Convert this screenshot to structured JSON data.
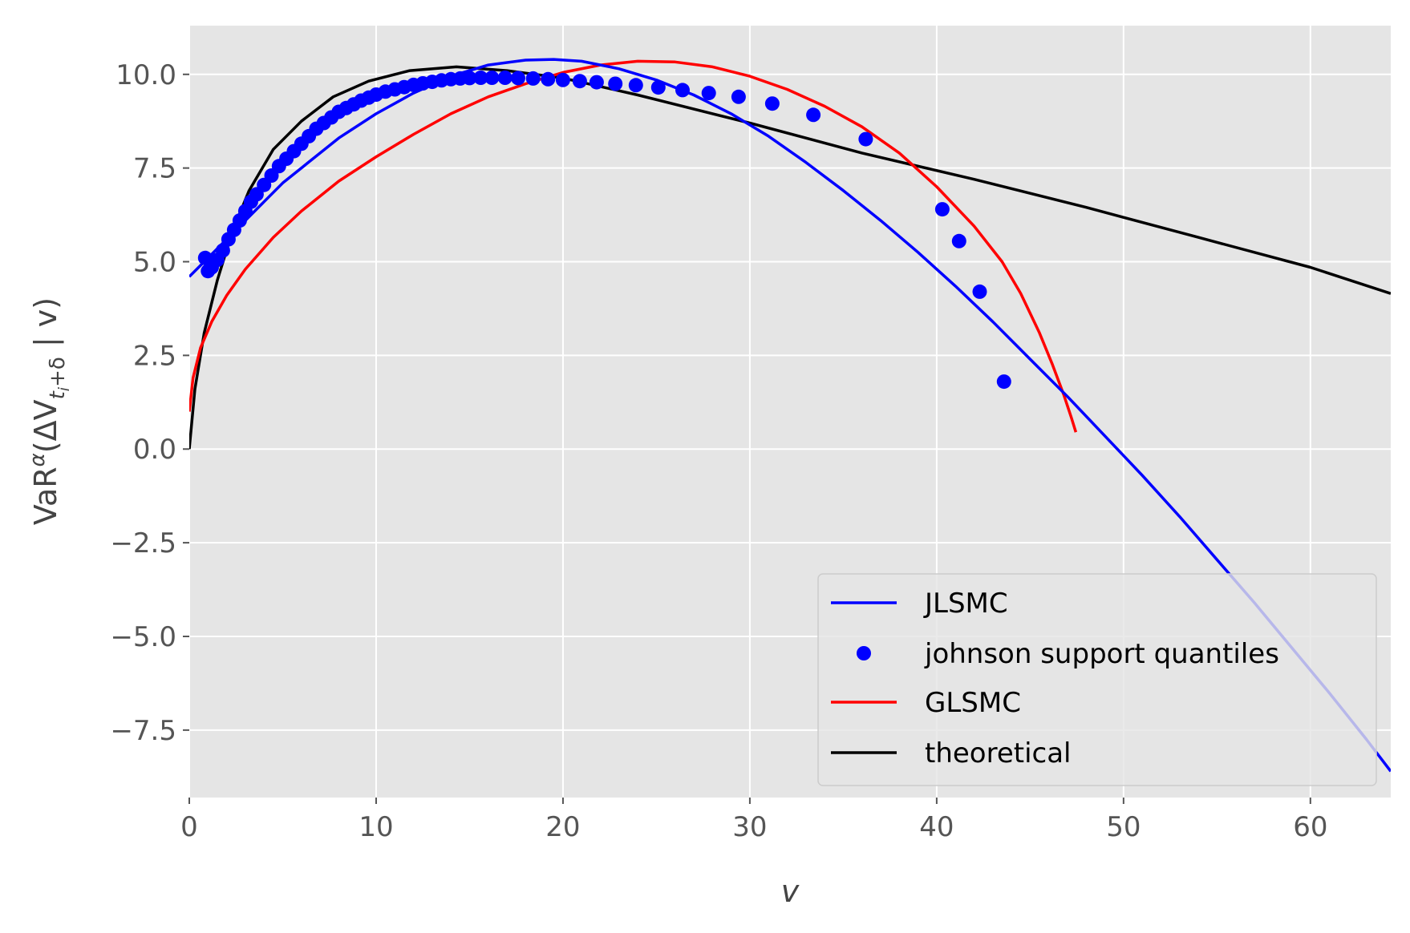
{
  "chart_data": {
    "type": "line",
    "title": "",
    "xlabel": "v",
    "ylabel_parts": {
      "base": "VaR",
      "sup": "α",
      "open": "(ΔV",
      "sub": "t",
      "subsub": "i",
      "sub_tail": "+δ",
      "close": " | v)"
    },
    "xlim": [
      0,
      64.3
    ],
    "ylim": [
      -9.3,
      11.3
    ],
    "x_ticks": [
      0,
      10,
      20,
      30,
      40,
      50,
      60
    ],
    "x_tick_labels": [
      "0",
      "10",
      "20",
      "30",
      "40",
      "50",
      "60"
    ],
    "y_ticks": [
      -7.5,
      -5.0,
      -2.5,
      0.0,
      2.5,
      5.0,
      7.5,
      10.0
    ],
    "y_tick_labels": [
      "−7.5",
      "−5.0",
      "−2.5",
      "0.0",
      "2.5",
      "5.0",
      "7.5",
      "10.0"
    ],
    "grid": true,
    "legend_position": "lower-right",
    "background": "#e5e5e5",
    "series": [
      {
        "name": "JLSMC",
        "kind": "line",
        "color": "#0000ff",
        "x": [
          0,
          1,
          2,
          3,
          4,
          5,
          6,
          8,
          10,
          12,
          14,
          16,
          18,
          19.5,
          21,
          23,
          25,
          27,
          29,
          31,
          33,
          35,
          37,
          39,
          41,
          43,
          45,
          47,
          49,
          51,
          53,
          55,
          57,
          59,
          61,
          63,
          64.3
        ],
        "y": [
          4.6,
          5.1,
          5.6,
          6.1,
          6.6,
          7.1,
          7.5,
          8.3,
          8.95,
          9.5,
          9.95,
          10.25,
          10.38,
          10.4,
          10.35,
          10.15,
          9.85,
          9.45,
          8.95,
          8.35,
          7.65,
          6.9,
          6.1,
          5.25,
          4.35,
          3.4,
          2.4,
          1.4,
          0.35,
          -0.7,
          -1.8,
          -2.95,
          -4.1,
          -5.3,
          -6.5,
          -7.75,
          -8.6
        ]
      },
      {
        "name": "johnson support quantiles",
        "kind": "scatter",
        "color": "#0000ff",
        "x": [
          0.85,
          1.0,
          1.2,
          1.5,
          1.8,
          2.1,
          2.4,
          2.7,
          3.0,
          3.3,
          3.6,
          4.0,
          4.4,
          4.8,
          5.2,
          5.6,
          6.0,
          6.4,
          6.8,
          7.2,
          7.6,
          8.0,
          8.4,
          8.8,
          9.2,
          9.6,
          10.0,
          10.5,
          11.0,
          11.5,
          12.0,
          12.5,
          13.0,
          13.5,
          14.0,
          14.5,
          15.0,
          15.6,
          16.2,
          16.9,
          17.6,
          18.4,
          19.2,
          20.0,
          20.9,
          21.8,
          22.8,
          23.9,
          25.1,
          26.4,
          27.8,
          29.4,
          31.2,
          33.4,
          36.2,
          40.3,
          41.2,
          42.3,
          43.6
        ],
        "y": [
          5.1,
          4.75,
          4.85,
          5.05,
          5.3,
          5.6,
          5.85,
          6.1,
          6.35,
          6.6,
          6.8,
          7.05,
          7.3,
          7.55,
          7.75,
          7.95,
          8.15,
          8.35,
          8.55,
          8.7,
          8.85,
          9.0,
          9.1,
          9.2,
          9.3,
          9.38,
          9.46,
          9.54,
          9.6,
          9.66,
          9.72,
          9.76,
          9.8,
          9.84,
          9.87,
          9.89,
          9.9,
          9.91,
          9.91,
          9.91,
          9.9,
          9.89,
          9.87,
          9.85,
          9.82,
          9.79,
          9.75,
          9.71,
          9.65,
          9.58,
          9.5,
          9.4,
          9.22,
          8.92,
          8.27,
          6.4,
          5.55,
          4.2,
          1.8
        ]
      },
      {
        "name": "GLSMC",
        "kind": "line",
        "color": "#ff0000",
        "x": [
          0,
          0.2,
          0.6,
          1.2,
          2,
          3,
          4.5,
          6,
          8,
          10,
          12,
          14,
          16,
          18,
          20,
          22,
          24,
          26,
          28,
          30,
          32,
          34,
          36,
          38,
          40,
          42,
          43.5,
          44.5,
          45.5,
          46.2,
          46.8,
          47.2,
          47.45
        ],
        "y": [
          1.0,
          1.9,
          2.7,
          3.4,
          4.1,
          4.8,
          5.65,
          6.35,
          7.15,
          7.8,
          8.4,
          8.95,
          9.4,
          9.75,
          10.05,
          10.25,
          10.35,
          10.33,
          10.2,
          9.95,
          9.6,
          9.15,
          8.6,
          7.9,
          7.0,
          5.95,
          5.0,
          4.15,
          3.1,
          2.25,
          1.45,
          0.85,
          0.45
        ]
      },
      {
        "name": "theoretical",
        "kind": "line",
        "color": "#000000",
        "x": [
          0,
          0.3,
          0.8,
          1.5,
          2.3,
          3.2,
          4.5,
          6,
          7.7,
          9.6,
          11.8,
          14.3,
          17,
          20,
          24,
          30,
          36,
          42,
          48,
          54,
          60,
          64.3
        ],
        "y": [
          0.0,
          1.6,
          3.1,
          4.5,
          5.8,
          6.9,
          8.0,
          8.75,
          9.4,
          9.82,
          10.1,
          10.2,
          10.1,
          9.9,
          9.45,
          8.7,
          7.9,
          7.2,
          6.45,
          5.65,
          4.85,
          4.15
        ]
      }
    ]
  }
}
